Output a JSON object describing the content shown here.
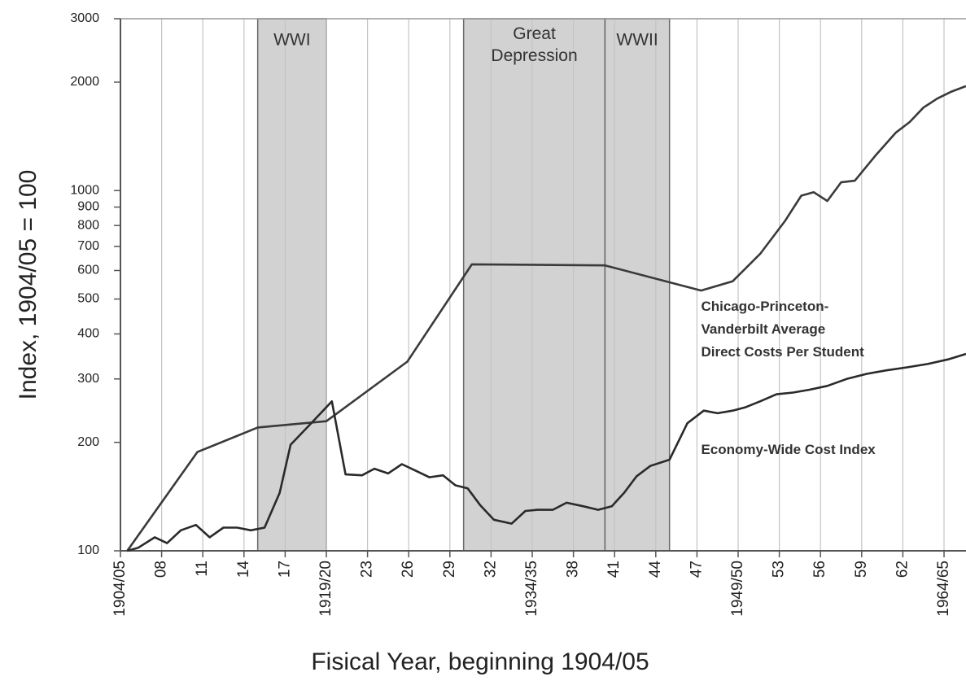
{
  "chart_data": {
    "type": "line",
    "y_label": "Index, 1904/05 = 100",
    "x_label": "Fisical Year, beginning 1904/05",
    "log_y": true,
    "grid": "x",
    "xlim": [
      1904,
      1965.6
    ],
    "ylim": [
      100,
      3000
    ],
    "yticks": [
      100,
      200,
      300,
      400,
      500,
      600,
      700,
      800,
      900,
      1000,
      2000,
      3000
    ],
    "xticks": [
      {
        "value": 1904,
        "label": "1904/05"
      },
      {
        "value": 1907,
        "label": "08"
      },
      {
        "value": 1910,
        "label": "11"
      },
      {
        "value": 1913,
        "label": "14"
      },
      {
        "value": 1916,
        "label": "17"
      },
      {
        "value": 1919,
        "label": "1919/20"
      },
      {
        "value": 1922,
        "label": "23"
      },
      {
        "value": 1925,
        "label": "26"
      },
      {
        "value": 1928,
        "label": "29"
      },
      {
        "value": 1931,
        "label": "32"
      },
      {
        "value": 1934,
        "label": "1934/35"
      },
      {
        "value": 1937,
        "label": "38"
      },
      {
        "value": 1940,
        "label": "41"
      },
      {
        "value": 1943,
        "label": "44"
      },
      {
        "value": 1946,
        "label": "47"
      },
      {
        "value": 1949,
        "label": "1949/50"
      },
      {
        "value": 1952,
        "label": "53"
      },
      {
        "value": 1955,
        "label": "56"
      },
      {
        "value": 1958,
        "label": "59"
      },
      {
        "value": 1961,
        "label": "62"
      },
      {
        "value": 1964,
        "label": "1964/65"
      }
    ],
    "bands": [
      {
        "label": "WWI",
        "range": [
          1914,
          1919
        ]
      },
      {
        "label": "Great Depression",
        "range": [
          1929,
          1939.3
        ]
      },
      {
        "label": "WWII",
        "range": [
          1939.3,
          1944
        ]
      }
    ],
    "series": [
      {
        "color": "#3a3a3a",
        "x": [
          1904.5,
          1909.6,
          1914,
          1919,
          1924.9,
          1929.6,
          1939.3,
          1946.3,
          1948.6,
          1950.6,
          1952.4,
          1953.6,
          1954.5,
          1955.5,
          1956.5,
          1957.5,
          1959,
          1960.5,
          1961.5,
          1962.5,
          1963.5,
          1964.5,
          1965.6
        ],
        "values": [
          100,
          188,
          220,
          229,
          335,
          624,
          620,
          528,
          560,
          667,
          822,
          968,
          990,
          936,
          1054,
          1065,
          1250,
          1450,
          1550,
          1700,
          1800,
          1880,
          1950
        ]
      },
      {
        "color": "#2a2a2a",
        "x": [
          1904.5,
          1905.3,
          1906.5,
          1907.4,
          1908.4,
          1909.5,
          1910.5,
          1911.5,
          1912.5,
          1913.5,
          1914.5,
          1915.6,
          1916.4,
          1917.8,
          1919.4,
          1920.4,
          1921.6,
          1922.5,
          1923.5,
          1924.5,
          1925.5,
          1926.5,
          1927.5,
          1928.4,
          1929.3,
          1930.2,
          1931.2,
          1932.5,
          1933.5,
          1934.4,
          1935.5,
          1936.5,
          1937.7,
          1938.8,
          1939.8,
          1940.7,
          1941.6,
          1942.6,
          1944,
          1945.3,
          1946.5,
          1947.5,
          1948.6,
          1949.5,
          1950.6,
          1951.8,
          1953,
          1954.2,
          1955.5,
          1956.9,
          1958.4,
          1959.8,
          1961.3,
          1962.8,
          1964.3,
          1965.6
        ],
        "values": [
          100,
          102,
          109,
          105,
          114,
          118,
          109,
          116,
          116,
          114,
          116,
          145,
          197,
          224,
          260,
          163,
          162,
          169,
          164,
          174,
          167,
          160,
          162,
          152,
          149,
          134,
          122,
          119,
          129,
          130,
          130,
          136,
          133,
          130,
          133,
          145,
          161,
          172,
          179,
          226,
          245,
          241,
          245,
          250,
          260,
          272,
          275,
          280,
          287,
          300,
          310,
          317,
          323,
          330,
          340,
          352
        ]
      }
    ],
    "annotations": [
      {
        "lines": [
          "Chicago-Princeton-",
          "Vanderbilt Average",
          "Direct Costs Per Student"
        ],
        "x": 1946.3,
        "y": 500
      },
      {
        "lines": [
          "Economy-Wide Cost Index"
        ],
        "x": 1946.3,
        "y": 200
      }
    ]
  }
}
